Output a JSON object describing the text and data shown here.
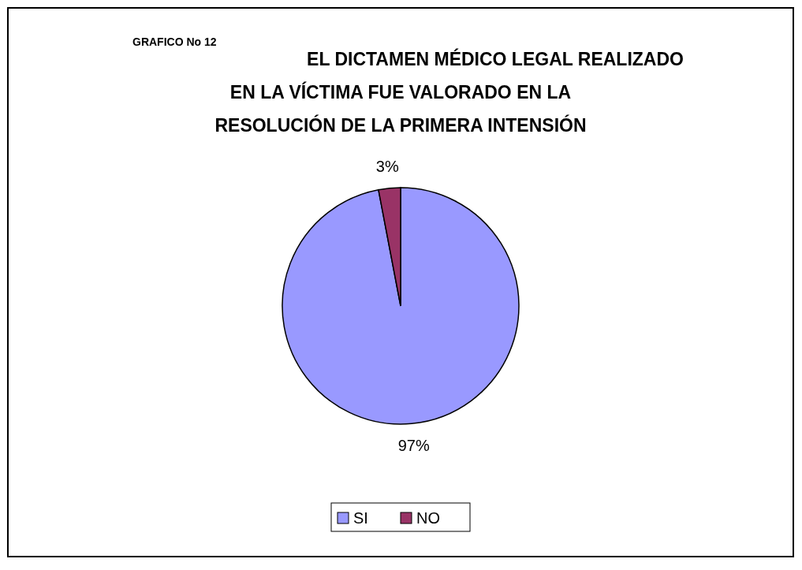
{
  "chart_data": {
    "type": "pie",
    "subtitle": "GRAFICO No 12",
    "title": "EL DICTAMEN MÉDICO LEGAL REALIZADO EN LA VÍCTIMA FUE VALORADO EN LA RESOLUCIÓN DE LA PRIMERA INTENSIÓN",
    "categories": [
      "SI",
      "NO"
    ],
    "values": [
      97,
      3
    ],
    "colors": [
      "#9999ff",
      "#993366"
    ],
    "value_labels": [
      "97%",
      "3%"
    ],
    "legend": "bottom"
  }
}
